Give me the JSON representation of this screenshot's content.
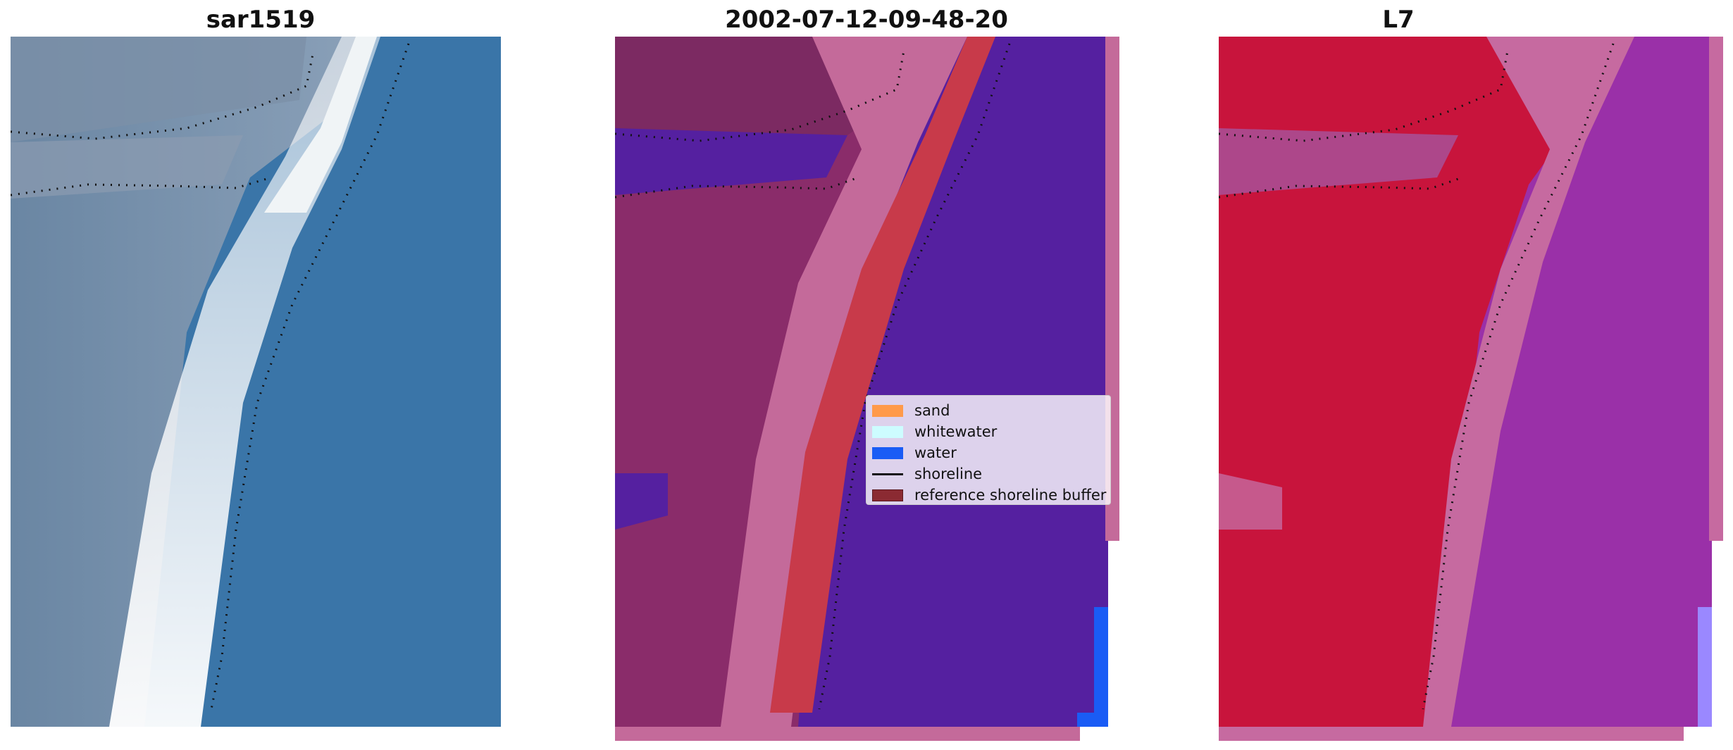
{
  "panels": [
    {
      "title": "sar1519"
    },
    {
      "title": "2002-07-12-09-48-20"
    },
    {
      "title": "L7"
    }
  ],
  "legend": [
    {
      "label": "sand",
      "kind": "patch",
      "color": "#ff9a4a"
    },
    {
      "label": "whitewater",
      "kind": "patch",
      "color": "#cdfcff"
    },
    {
      "label": "water",
      "kind": "patch",
      "color": "#1a5cf5"
    },
    {
      "label": "shoreline",
      "kind": "line",
      "color": "#111111"
    },
    {
      "label": "reference shoreline buffer",
      "kind": "patch",
      "color": "#8b2a32"
    }
  ],
  "colors": {
    "water_rgb": "#3a75a8",
    "whitewater_rgb": "#e8eef4",
    "land_rgb": "#6f8aa6",
    "classified_water": "#5520a0",
    "classified_land": "#8a2c6a",
    "classified_buffer": "#c83a4a",
    "classified_pink": "#c46a9a",
    "mndwi_land": "#c8143c",
    "mndwi_water": "#9a30a8",
    "mndwi_pink": "#c66aa0"
  }
}
